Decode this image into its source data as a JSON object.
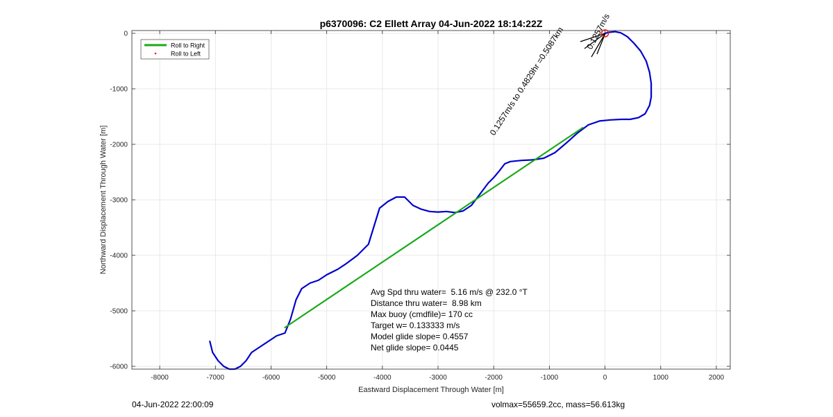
{
  "chart_data": {
    "type": "line",
    "title": "p6370096: C2 Ellett Array 04-Jun-2022 18:14:22Z",
    "xlabel": "Eastward Displacement Through Water [m]",
    "ylabel": "Northward Displacement Through Water [m]",
    "xlim": [
      -8500,
      2250
    ],
    "ylim": [
      -6050,
      50
    ],
    "xticks": [
      -8000,
      -7000,
      -6000,
      -5000,
      -4000,
      -3000,
      -2000,
      -1000,
      0,
      1000,
      2000
    ],
    "yticks": [
      0,
      -1000,
      -2000,
      -3000,
      -4000,
      -5000,
      -6000
    ],
    "grid": true,
    "legend_position": "top-left",
    "series": [
      {
        "name": "Roll to Right",
        "color": "#1aaa1a",
        "x": [
          -5750,
          -400
        ],
        "y": [
          -5300,
          -1700
        ]
      },
      {
        "name": "Roll to Left",
        "color": "#e41a1c",
        "x": [],
        "y": []
      },
      {
        "color": "#0000cc",
        "x": [
          0,
          80,
          180,
          280,
          400,
          520,
          640,
          740,
          800,
          830,
          830,
          800,
          720,
          600,
          450,
          300,
          100,
          -100,
          -300,
          -500,
          -700,
          -900,
          -1100,
          -1300,
          -1500,
          -1700,
          -1800,
          -1900,
          -2000,
          -2100,
          -2250,
          -2400,
          -2550,
          -2700,
          -2850,
          -3000,
          -3150,
          -3300,
          -3450,
          -3600,
          -3750,
          -3900,
          -4050,
          -4250,
          -4450,
          -4650,
          -4800,
          -5000,
          -5150,
          -5300,
          -5450,
          -5550,
          -5650,
          -5750,
          -5900,
          -6050,
          -6200,
          -6350,
          -6450,
          -6550,
          -6650,
          -6750,
          -6850,
          -6950,
          -7050,
          -7100
        ],
        "y": [
          0,
          20,
          30,
          10,
          -60,
          -180,
          -320,
          -500,
          -700,
          -900,
          -1150,
          -1300,
          -1450,
          -1520,
          -1550,
          -1550,
          -1560,
          -1580,
          -1650,
          -1800,
          -1980,
          -2150,
          -2250,
          -2280,
          -2290,
          -2310,
          -2350,
          -2480,
          -2600,
          -2700,
          -2900,
          -3100,
          -3200,
          -3230,
          -3210,
          -3220,
          -3210,
          -3170,
          -3100,
          -2950,
          -2950,
          -3030,
          -3150,
          -3800,
          -4000,
          -4150,
          -4250,
          -4350,
          -4450,
          -4500,
          -4600,
          -4800,
          -5150,
          -5400,
          -5450,
          -5550,
          -5650,
          -5750,
          -5900,
          -6000,
          -6050,
          -6050,
          -6000,
          -5900,
          -5750,
          -5550
        ]
      }
    ],
    "annotations": [
      "Avg Spd thru water=  5.16 m/s @ 232.0 °T",
      "Distance thru water=  8.98 km",
      "Max buoy (cmdfile)= 170 cc",
      "Target w= 0.133333 m/s",
      "Model glide slope= 0.4557",
      "Net glide slope= 0.0445"
    ],
    "current_label": "0.1257m/s to 0.4829hr =0.5087km",
    "current_label_short": "0.1257m/s",
    "marker": {
      "x": 0,
      "y": 0,
      "color": "#e41a1c"
    }
  },
  "footer": {
    "left": "04-Jun-2022 22:00:09",
    "right": "volmax=55659.2cc, mass=56.613kg"
  }
}
